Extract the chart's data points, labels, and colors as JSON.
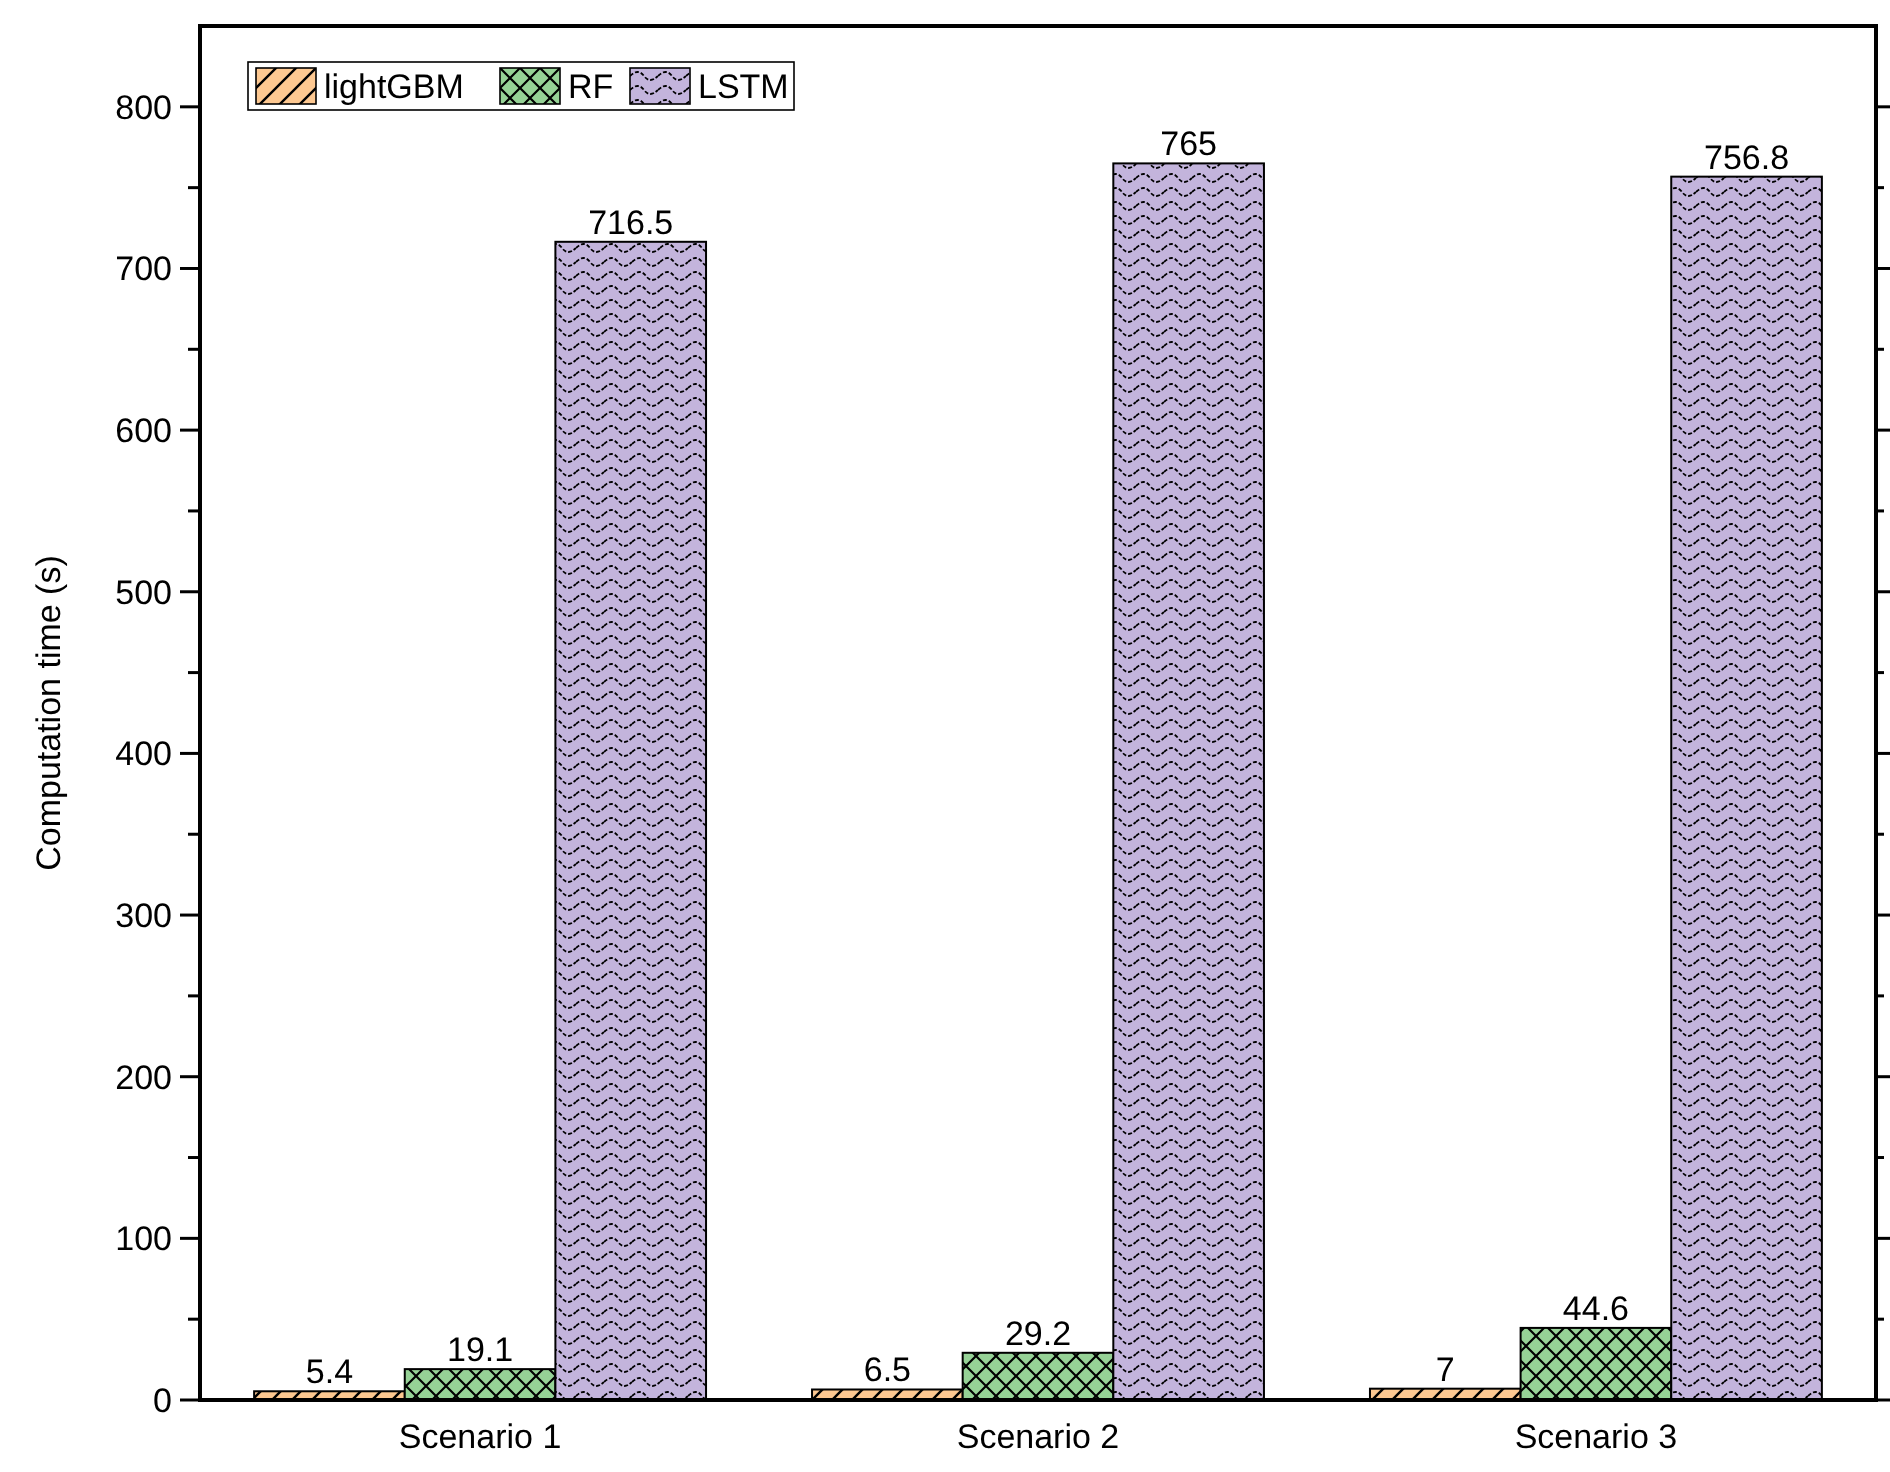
{
  "chart_data": {
    "type": "bar",
    "ylabel": "Computation time (s)",
    "categories": [
      "Scenario 1",
      "Scenario 2",
      "Scenario 3"
    ],
    "series": [
      {
        "name": "lightGBM",
        "color": "#fdc891",
        "values": [
          5.4,
          6.5,
          7
        ]
      },
      {
        "name": "RF",
        "color": "#96d296",
        "values": [
          19.1,
          29.2,
          44.6
        ]
      },
      {
        "name": "LSTM",
        "color": "#c3b4dc",
        "values": [
          716.5,
          765,
          756.8
        ]
      }
    ],
    "ylim": [
      0,
      850
    ],
    "yticks": [
      0,
      {
        "value": 50,
        "label": null
      },
      100,
      {
        "value": 150,
        "label": null
      },
      200,
      {
        "value": 250,
        "label": null
      },
      300,
      {
        "value": 350,
        "label": null
      },
      400,
      {
        "value": 450,
        "label": null
      },
      500,
      {
        "value": 550,
        "label": null
      },
      600,
      {
        "value": 650,
        "label": null
      },
      700,
      {
        "value": 750,
        "label": null
      },
      800
    ],
    "data_labels": true,
    "legend": "top left",
    "grid": false
  }
}
